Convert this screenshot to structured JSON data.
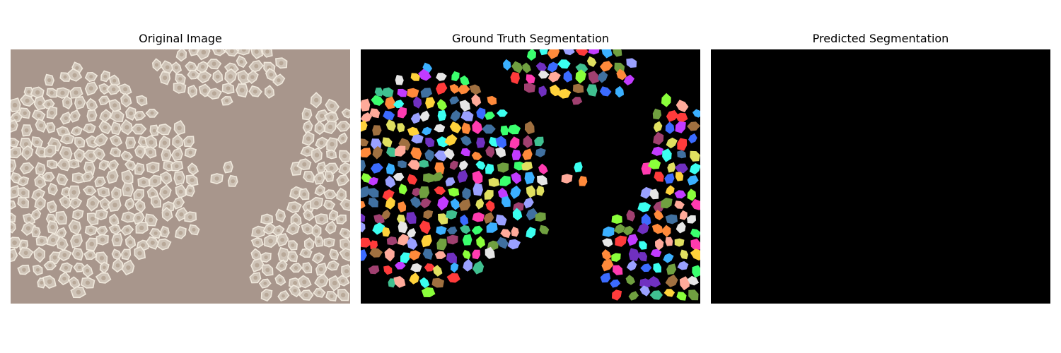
{
  "figure": {
    "panels": [
      {
        "title": "Original Image"
      },
      {
        "title": "Ground Truth Segmentation"
      },
      {
        "title": "Predicted Segmentation"
      }
    ]
  },
  "colors": {
    "microscopy_background": "#a8968c",
    "cell_fill": "#cfc4b8",
    "cell_border": "#efe8dc",
    "cell_nucleus": "#b8a898",
    "segmentation_background": "#000000",
    "prediction_fill": "#000000",
    "label_palette": [
      "#ff3b3b",
      "#3bff6e",
      "#3b6bff",
      "#ffd23b",
      "#c23bff",
      "#3bfff0",
      "#ff8a3b",
      "#8aff3b",
      "#ff3bb0",
      "#3bb0ff",
      "#a07040",
      "#70a040",
      "#4070a0",
      "#a04070",
      "#e6e6e6",
      "#9aa0ff",
      "#ffaa9a",
      "#40c090",
      "#e0e060",
      "#7030c0"
    ]
  }
}
